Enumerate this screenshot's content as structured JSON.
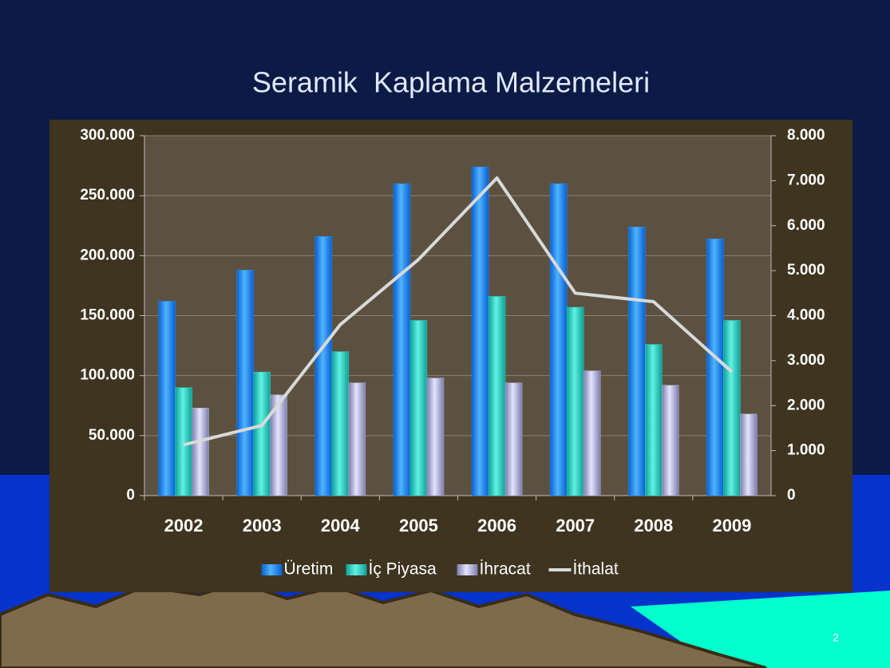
{
  "chart_data": {
    "type": "bar",
    "title": "Seramik  Kaplama Malzemeleri",
    "categories": [
      "2002",
      "2003",
      "2004",
      "2005",
      "2006",
      "2007",
      "2008",
      "2009"
    ],
    "series": [
      {
        "name": "Üretim",
        "color": "#1e8fff",
        "values": [
          162000,
          188000,
          216000,
          260000,
          274000,
          260000,
          224000,
          214000
        ]
      },
      {
        "name": "İç Piyasa",
        "color": "#26d6c4",
        "values": [
          90000,
          103000,
          120000,
          146000,
          166000,
          157000,
          126000,
          146000
        ]
      },
      {
        "name": "İhracat",
        "color": "#b4b4dc",
        "values": [
          73000,
          84000,
          94000,
          98000,
          94000,
          104000,
          92000,
          68000
        ]
      },
      {
        "name": "İthalat",
        "color": "#d9d9d9",
        "type": "line",
        "axis": "y2",
        "values": [
          1130,
          1560,
          3800,
          5250,
          7060,
          4500,
          4310,
          2750
        ]
      }
    ],
    "ylim": [
      0,
      300000
    ],
    "yticks": [
      {
        "value": 0,
        "label": "0"
      },
      {
        "value": 50000,
        "label": "50.000"
      },
      {
        "value": 100000,
        "label": "100.000"
      },
      {
        "value": 150000,
        "label": "150.000"
      },
      {
        "value": 200000,
        "label": "200.000"
      },
      {
        "value": 250000,
        "label": "250.000"
      },
      {
        "value": 300000,
        "label": "300.000"
      }
    ],
    "y2lim": [
      0,
      8000
    ],
    "y2ticks": [
      {
        "value": 0,
        "label": "0"
      },
      {
        "value": 1000,
        "label": "1.000"
      },
      {
        "value": 2000,
        "label": "2.000"
      },
      {
        "value": 3000,
        "label": "3.000"
      },
      {
        "value": 4000,
        "label": "4.000"
      },
      {
        "value": 5000,
        "label": "5.000"
      },
      {
        "value": 6000,
        "label": "6.000"
      },
      {
        "value": 7000,
        "label": "7.000"
      },
      {
        "value": 8000,
        "label": "8.000"
      }
    ],
    "grid": true,
    "legend": "bottom"
  },
  "page_number": "2"
}
